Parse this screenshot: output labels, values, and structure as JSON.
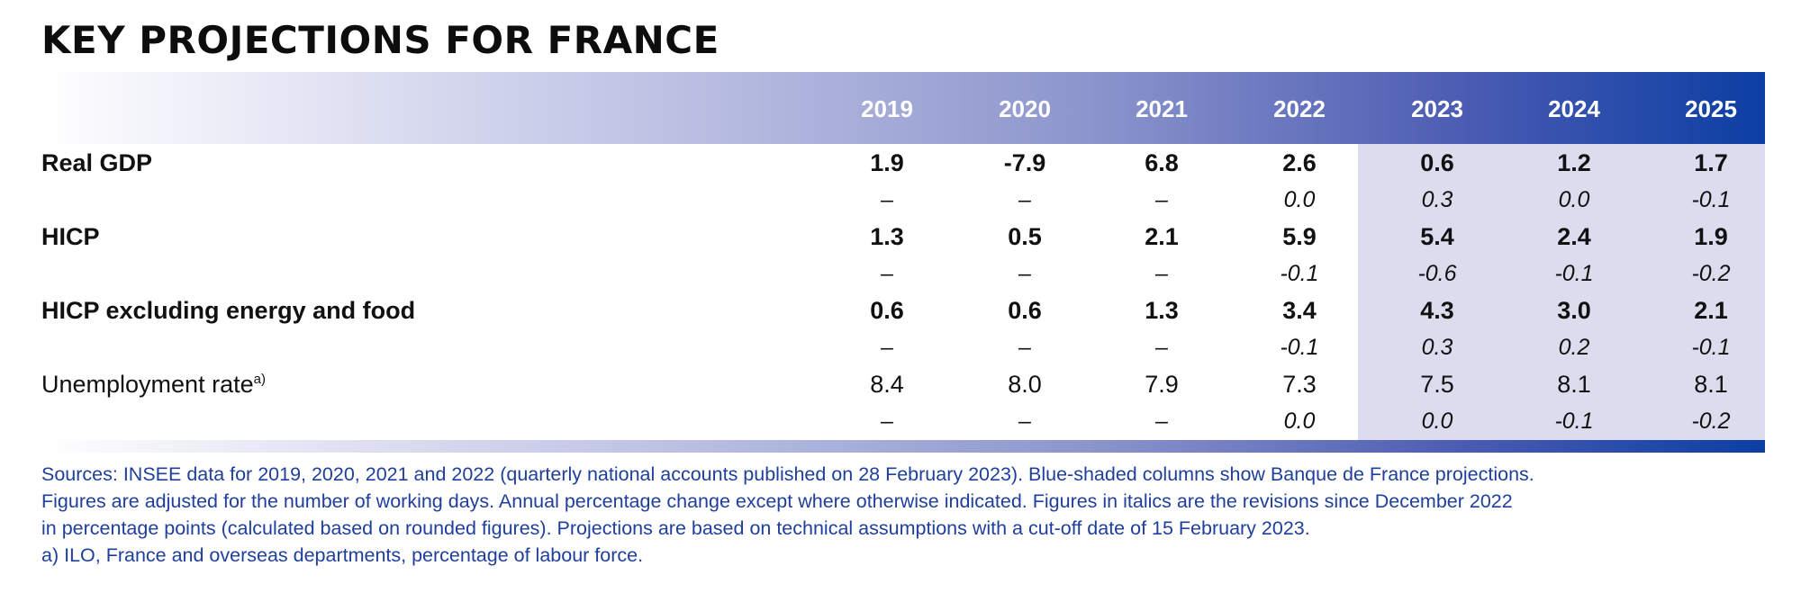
{
  "title": "KEY PROJECTIONS FOR FRANCE",
  "years": [
    "2019",
    "2020",
    "2021",
    "2022",
    "2023",
    "2024",
    "2025"
  ],
  "rows": [
    {
      "label": "Real GDP",
      "sup": "",
      "bold": true,
      "values": [
        "1.9",
        "-7.9",
        "6.8",
        "2.6",
        "0.6",
        "1.2",
        "1.7"
      ],
      "revisions": [
        "–",
        "–",
        "–",
        "0.0",
        "0.3",
        "0.0",
        "-0.1"
      ]
    },
    {
      "label": "HICP",
      "sup": "",
      "bold": true,
      "values": [
        "1.3",
        "0.5",
        "2.1",
        "5.9",
        "5.4",
        "2.4",
        "1.9"
      ],
      "revisions": [
        "–",
        "–",
        "–",
        "-0.1",
        "-0.6",
        "-0.1",
        "-0.2"
      ]
    },
    {
      "label": "HICP excluding energy and food",
      "sup": "",
      "bold": true,
      "values": [
        "0.6",
        "0.6",
        "1.3",
        "3.4",
        "4.3",
        "3.0",
        "2.1"
      ],
      "revisions": [
        "–",
        "–",
        "–",
        "-0.1",
        "0.3",
        "0.2",
        "-0.1"
      ]
    },
    {
      "label": "Unemployment rate",
      "sup": "a)",
      "bold": false,
      "values": [
        "8.4",
        "8.0",
        "7.9",
        "7.3",
        "7.5",
        "8.1",
        "8.1"
      ],
      "revisions": [
        "–",
        "–",
        "–",
        "0.0",
        "0.0",
        "-0.1",
        "-0.2"
      ]
    }
  ],
  "notes": [
    "Sources: INSEE data for 2019, 2020, 2021 and 2022 (quarterly national accounts published on 28 February 2023). Blue-shaded columns show Banque de France projections.",
    "Figures are adjusted for the number of working days. Annual percentage change except where otherwise indicated. Figures in italics are the revisions since December 2022",
    "in percentage points (calculated based on rounded figures). Projections are based on technical assumptions with a cut-off date of 15 February 2023.",
    "a)  ILO, France and overseas departments, percentage of labour force."
  ],
  "colors": {
    "header_band_end": "#0b3ea3",
    "projection_shade": "#dcdcef",
    "notes_text": "#1f3f9c"
  }
}
